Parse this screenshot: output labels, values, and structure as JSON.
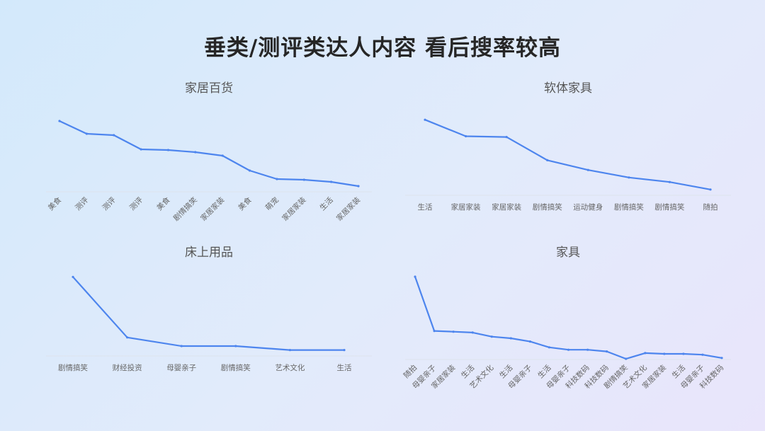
{
  "title": "垂类/测评类达人内容 看后搜率较高",
  "accent_color": "#4d85ee",
  "chart_data": [
    {
      "type": "line",
      "title": "家居百货",
      "categories": [
        "美食",
        "测评",
        "测评",
        "测评",
        "美食",
        "剧情搞笑",
        "家居家装",
        "美食",
        "萌宠",
        "家居家装",
        "生活",
        "家居家装"
      ],
      "values": [
        0.95,
        0.77,
        0.75,
        0.55,
        0.54,
        0.51,
        0.46,
        0.25,
        0.13,
        0.12,
        0.09,
        0.03
      ],
      "ylim": [
        0,
        1
      ],
      "rotated_labels": true
    },
    {
      "type": "line",
      "title": "软体家具",
      "categories": [
        "生活",
        "家居家装",
        "家居家装",
        "剧情搞笑",
        "运动健身",
        "剧情搞笑",
        "剧情搞笑",
        "随拍"
      ],
      "values": [
        0.97,
        0.75,
        0.74,
        0.43,
        0.3,
        0.2,
        0.14,
        0.04
      ],
      "ylim": [
        0,
        1
      ],
      "rotated_labels": false
    },
    {
      "type": "line",
      "title": "床上用品",
      "categories": [
        "剧情搞笑",
        "财经投资",
        "母婴亲子",
        "剧情搞笑",
        "艺术文化",
        "生活"
      ],
      "values": [
        0.97,
        0.2,
        0.09,
        0.09,
        0.04,
        0.04
      ],
      "ylim": [
        0,
        1
      ],
      "rotated_labels": false
    },
    {
      "type": "line",
      "title": "家具",
      "categories": [
        "随拍",
        "母婴亲子",
        "家居家装",
        "生活",
        "艺术文化",
        "生活",
        "母婴亲子",
        "生活",
        "母婴亲子",
        "科技数码",
        "科技数码",
        "剧情搞笑",
        "艺术文化",
        "家居家装",
        "生活",
        "母婴亲子",
        "科技数码"
      ],
      "values": [
        1.0,
        0.34,
        0.33,
        0.32,
        0.27,
        0.25,
        0.21,
        0.14,
        0.11,
        0.11,
        0.09,
        0.0,
        0.07,
        0.06,
        0.06,
        0.05,
        0.01
      ],
      "ylim": [
        0,
        1
      ],
      "rotated_labels": true
    }
  ]
}
